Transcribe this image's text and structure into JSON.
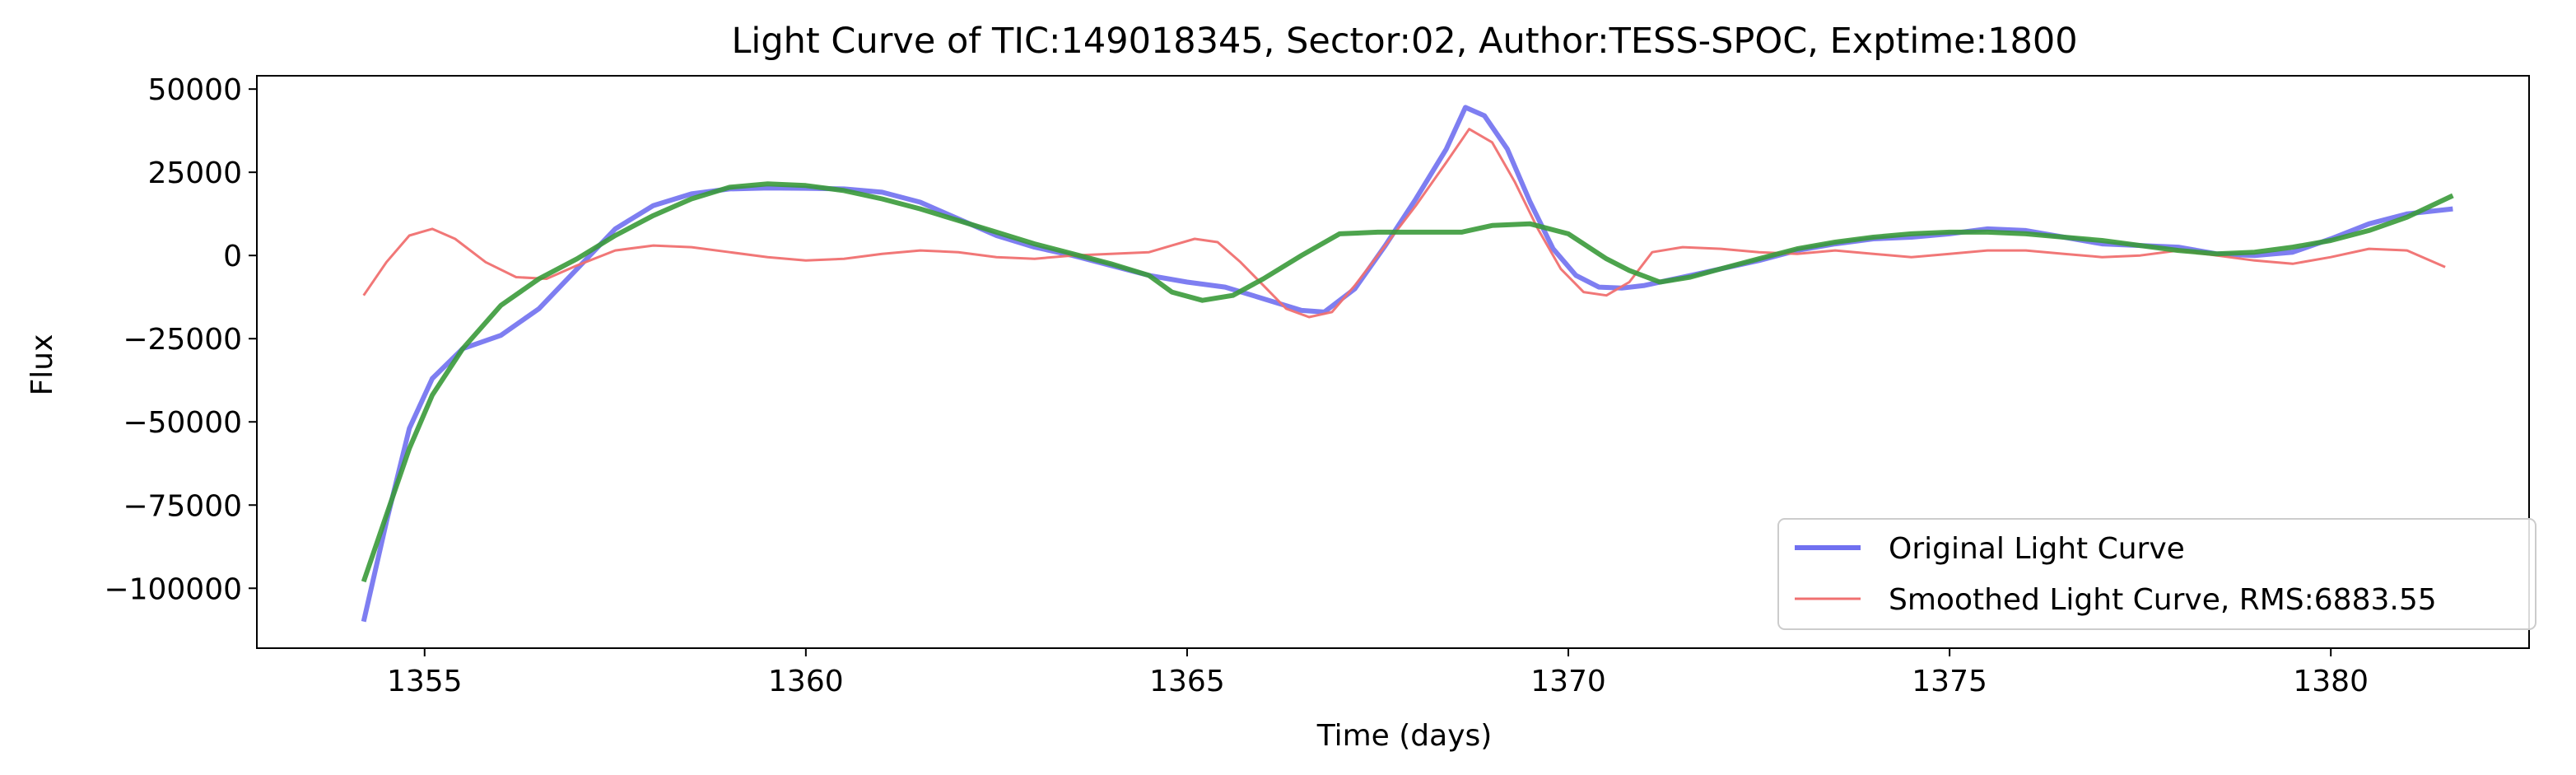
{
  "chart_data": {
    "type": "line",
    "title": "Light Curve of TIC:149018345, Sector:02, Author:TESS-SPOC, Exptime:1800",
    "xlabel": "Time (days)",
    "ylabel": "Flux",
    "xlim": [
      1352.8,
      1382.6
    ],
    "ylim": [
      -118000,
      54000
    ],
    "xticks": [
      1355,
      1360,
      1365,
      1370,
      1375,
      1380
    ],
    "xtick_labels": [
      "1355",
      "1360",
      "1365",
      "1370",
      "1375",
      "1380"
    ],
    "yticks": [
      50000,
      25000,
      0,
      -25000,
      -50000,
      -75000,
      -100000
    ],
    "ytick_labels": [
      "50000",
      "25000",
      "0",
      "−25000",
      "−50000",
      "−75000",
      "−100000"
    ],
    "grid": false,
    "legend_position": "lower-right",
    "series": [
      {
        "name": "Original Light Curve",
        "color": "#7070f0",
        "x": [
          1354.2,
          1354.5,
          1354.8,
          1355.1,
          1355.5,
          1356.0,
          1356.5,
          1357.0,
          1357.5,
          1358.0,
          1358.5,
          1359.0,
          1359.5,
          1360.0,
          1360.5,
          1361.0,
          1361.5,
          1362.0,
          1362.5,
          1363.0,
          1363.5,
          1364.0,
          1364.5,
          1365.0,
          1365.5,
          1366.0,
          1366.5,
          1366.8,
          1367.2,
          1367.6,
          1368.0,
          1368.4,
          1368.65,
          1368.9,
          1369.2,
          1369.5,
          1369.8,
          1370.1,
          1370.4,
          1370.7,
          1371.0,
          1371.5,
          1372.0,
          1372.5,
          1373.0,
          1373.5,
          1374.0,
          1374.5,
          1375.0,
          1375.5,
          1376.0,
          1376.5,
          1377.0,
          1377.5,
          1378.0,
          1378.5,
          1379.0,
          1379.5,
          1380.0,
          1380.5,
          1381.0,
          1381.6
        ],
        "y": [
          -110000,
          -80000,
          -52000,
          -37000,
          -28000,
          -24000,
          -16000,
          -4000,
          8000,
          15000,
          18500,
          20000,
          20300,
          20200,
          20000,
          19000,
          16000,
          11000,
          6000,
          2500,
          0,
          -3000,
          -6000,
          -8000,
          -9500,
          -13000,
          -16500,
          -17000,
          -10000,
          3000,
          17000,
          32000,
          44500,
          42000,
          32000,
          16000,
          2000,
          -6000,
          -9500,
          -9800,
          -9000,
          -6500,
          -4000,
          -1500,
          1500,
          3500,
          5000,
          5500,
          6500,
          8000,
          7500,
          5500,
          3500,
          3000,
          2500,
          500,
          0,
          1000,
          5000,
          9500,
          12500,
          14000
        ]
      },
      {
        "name": "Smoothed Light Curve, RMS:6883.55",
        "color": "#f07070",
        "x": [
          1354.2,
          1354.5,
          1354.8,
          1355.1,
          1355.4,
          1355.8,
          1356.2,
          1356.6,
          1357.0,
          1357.5,
          1358.0,
          1358.5,
          1359.0,
          1359.5,
          1360.0,
          1360.5,
          1361.0,
          1361.5,
          1362.0,
          1362.5,
          1363.0,
          1363.5,
          1364.0,
          1364.5,
          1364.8,
          1365.1,
          1365.4,
          1365.7,
          1366.0,
          1366.3,
          1366.6,
          1366.9,
          1367.2,
          1367.6,
          1368.0,
          1368.4,
          1368.7,
          1369.0,
          1369.3,
          1369.6,
          1369.9,
          1370.2,
          1370.5,
          1370.8,
          1371.1,
          1371.5,
          1372.0,
          1372.5,
          1373.0,
          1373.5,
          1374.0,
          1374.5,
          1375.0,
          1375.5,
          1376.0,
          1376.5,
          1377.0,
          1377.5,
          1378.0,
          1378.5,
          1379.0,
          1379.5,
          1380.0,
          1380.5,
          1381.0,
          1381.5
        ],
        "y": [
          -12000,
          -2000,
          6000,
          8000,
          5000,
          -2000,
          -6500,
          -7000,
          -3000,
          1500,
          3000,
          2500,
          1000,
          -500,
          -1500,
          -1000,
          500,
          1500,
          1000,
          -500,
          -1000,
          0,
          500,
          1000,
          3000,
          5000,
          4000,
          -2000,
          -9000,
          -16000,
          -18500,
          -17000,
          -9000,
          3000,
          15000,
          28000,
          38000,
          34000,
          22000,
          8000,
          -4000,
          -11000,
          -12000,
          -8000,
          1000,
          2500,
          2000,
          1000,
          500,
          1500,
          500,
          -500,
          500,
          1500,
          1500,
          500,
          -500,
          0,
          1500,
          0,
          -1500,
          -2500,
          -500,
          2000,
          1500,
          -3500
        ]
      },
      {
        "name": "",
        "color": "#3a9a3a",
        "x": [
          1354.2,
          1354.5,
          1354.8,
          1355.1,
          1355.5,
          1356.0,
          1356.5,
          1357.0,
          1357.5,
          1358.0,
          1358.5,
          1359.0,
          1359.5,
          1360.0,
          1360.5,
          1361.0,
          1361.5,
          1362.0,
          1362.5,
          1363.0,
          1363.5,
          1364.0,
          1364.5,
          1364.8,
          1365.2,
          1365.6,
          1366.0,
          1366.5,
          1367.0,
          1367.5,
          1368.0,
          1368.6,
          1369.0,
          1369.5,
          1370.0,
          1370.5,
          1370.8,
          1371.2,
          1371.6,
          1372.0,
          1372.5,
          1373.0,
          1373.5,
          1374.0,
          1374.5,
          1375.0,
          1375.5,
          1376.0,
          1376.5,
          1377.0,
          1377.5,
          1378.0,
          1378.5,
          1379.0,
          1379.5,
          1380.0,
          1380.5,
          1381.0,
          1381.6
        ],
        "y": [
          -98000,
          -78000,
          -58000,
          -42000,
          -28000,
          -15000,
          -7000,
          -1000,
          6000,
          12000,
          17000,
          20500,
          21500,
          21000,
          19500,
          17000,
          14000,
          10500,
          7000,
          3500,
          500,
          -2500,
          -6000,
          -11000,
          -13500,
          -12000,
          -7000,
          0,
          6500,
          7000,
          7000,
          7000,
          9000,
          9500,
          6500,
          -1000,
          -4500,
          -8000,
          -6500,
          -4000,
          -1000,
          2000,
          4000,
          5500,
          6500,
          7000,
          7000,
          6500,
          5500,
          4500,
          3000,
          1500,
          500,
          1000,
          2500,
          4500,
          7500,
          11500,
          18000
        ]
      }
    ]
  }
}
